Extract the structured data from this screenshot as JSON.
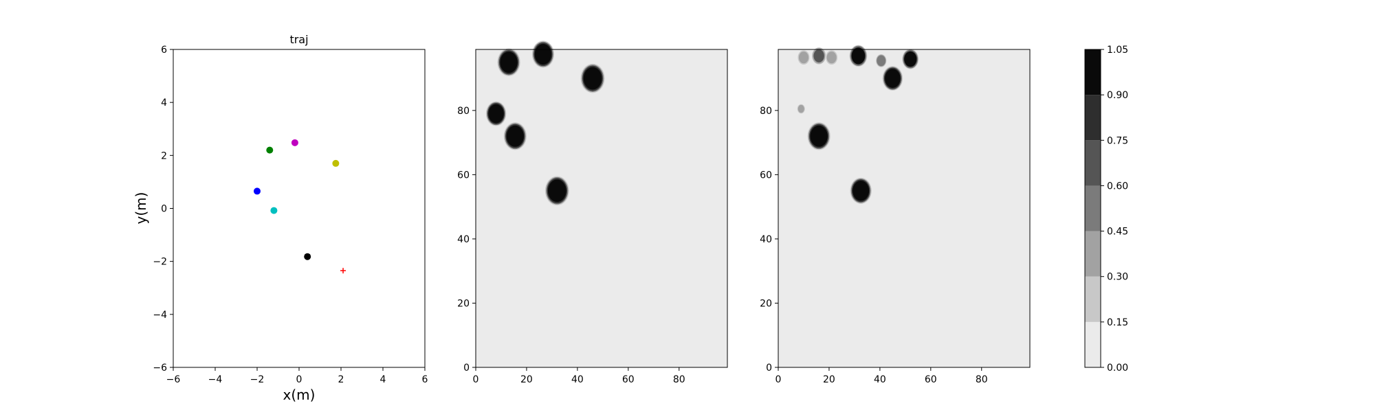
{
  "chart_data": [
    {
      "type": "scatter",
      "title": "traj",
      "xlabel": "x(m)",
      "ylabel": "y(m)",
      "xlim": [
        -6,
        6
      ],
      "ylim": [
        -6,
        6
      ],
      "xticks": [
        "−6",
        "−4",
        "−2",
        "0",
        "2",
        "4",
        "6"
      ],
      "yticks": [
        "−6",
        "−4",
        "−2",
        "0",
        "2",
        "4",
        "6"
      ],
      "grid": false,
      "points": [
        {
          "x": -1.4,
          "y": 2.2,
          "color": "#008000",
          "marker": "circle"
        },
        {
          "x": -0.2,
          "y": 2.48,
          "color": "#bf00bf",
          "marker": "circle"
        },
        {
          "x": 1.75,
          "y": 1.7,
          "color": "#bfbf00",
          "marker": "circle"
        },
        {
          "x": -2.0,
          "y": 0.65,
          "color": "#0000ff",
          "marker": "circle"
        },
        {
          "x": -1.2,
          "y": -0.08,
          "color": "#00bfbf",
          "marker": "circle"
        },
        {
          "x": 0.4,
          "y": -1.82,
          "color": "#000000",
          "marker": "circle"
        },
        {
          "x": 2.1,
          "y": -2.35,
          "color": "#ff0000",
          "marker": "plus"
        }
      ]
    },
    {
      "type": "heatmap",
      "xlim": [
        0,
        99
      ],
      "ylim": [
        0,
        99
      ],
      "xticks": [
        "0",
        "20",
        "40",
        "60",
        "80"
      ],
      "yticks": [
        "0",
        "20",
        "40",
        "60",
        "80"
      ],
      "background_level": 0.0,
      "blobs": [
        {
          "x": 13,
          "y": 95,
          "r": 3.6,
          "level": 1.0
        },
        {
          "x": 26.5,
          "y": 97.5,
          "r": 3.5,
          "level": 1.0
        },
        {
          "x": 46,
          "y": 90,
          "r": 3.8,
          "level": 1.0
        },
        {
          "x": 8,
          "y": 79,
          "r": 3.2,
          "level": 1.0
        },
        {
          "x": 15.5,
          "y": 72,
          "r": 3.6,
          "level": 1.0
        },
        {
          "x": 32,
          "y": 55,
          "r": 3.8,
          "level": 1.0
        }
      ]
    },
    {
      "type": "heatmap",
      "xlim": [
        0,
        99
      ],
      "ylim": [
        0,
        99
      ],
      "xticks": [
        "0",
        "20",
        "40",
        "60",
        "80"
      ],
      "yticks": [
        "0",
        "20",
        "40",
        "60",
        "80"
      ],
      "background_level": 0.0,
      "blobs": [
        {
          "x": 16,
          "y": 72,
          "r": 3.6,
          "level": 1.0
        },
        {
          "x": 32.5,
          "y": 55,
          "r": 3.4,
          "level": 1.0
        },
        {
          "x": 45,
          "y": 90,
          "r": 3.2,
          "level": 1.0
        },
        {
          "x": 31.5,
          "y": 97,
          "r": 2.8,
          "level": 0.9
        },
        {
          "x": 52,
          "y": 96,
          "r": 2.6,
          "level": 0.9
        },
        {
          "x": 16,
          "y": 97,
          "r": 2.2,
          "level": 0.6
        },
        {
          "x": 10,
          "y": 96.5,
          "r": 2.0,
          "level": 0.3
        },
        {
          "x": 21,
          "y": 96.5,
          "r": 2.0,
          "level": 0.3
        },
        {
          "x": 40.5,
          "y": 95.5,
          "r": 1.8,
          "level": 0.45
        },
        {
          "x": 9,
          "y": 80.5,
          "r": 1.3,
          "level": 0.3
        }
      ]
    }
  ],
  "colorbar": {
    "levels": [
      0.0,
      0.15,
      0.3,
      0.45,
      0.6,
      0.75,
      0.9,
      1.05
    ],
    "labels": [
      "0.00",
      "0.15",
      "0.30",
      "0.45",
      "0.60",
      "0.75",
      "0.90",
      "1.05"
    ],
    "colors": [
      "#ebebeb",
      "#c8c8c8",
      "#a2a2a2",
      "#7b7b7b",
      "#555555",
      "#2e2e2e",
      "#0a0a0a"
    ]
  }
}
